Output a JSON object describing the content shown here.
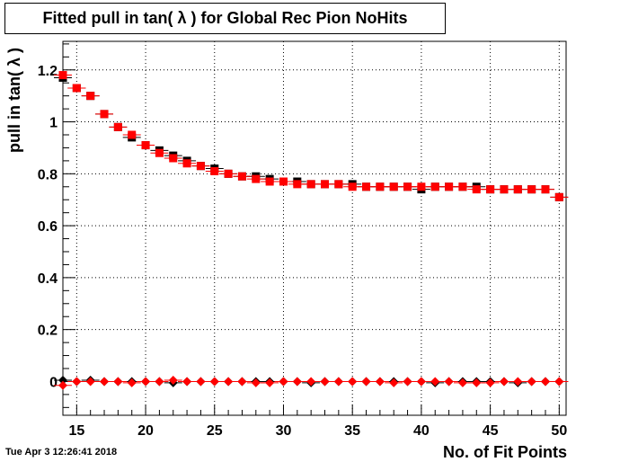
{
  "chart_data": {
    "type": "scatter",
    "title": "Fitted pull in tan( λ ) for Global Rec Pion NoHits",
    "xlabel": "No. of Fit Points",
    "ylabel": "pull in tan( λ )",
    "xlim": [
      14,
      50.5
    ],
    "ylim": [
      -0.13,
      1.31
    ],
    "xticks": [
      15,
      20,
      25,
      30,
      35,
      40,
      45,
      50
    ],
    "yticks": [
      0,
      0.2,
      0.4,
      0.6,
      0.8,
      1,
      1.2
    ],
    "ytick_labels": [
      "0",
      "0.2",
      "0.4",
      "0.6",
      "0.8",
      "1",
      "1.2"
    ],
    "grid": true,
    "x": [
      14,
      15,
      16,
      17,
      18,
      19,
      20,
      21,
      22,
      23,
      24,
      25,
      26,
      27,
      28,
      29,
      30,
      31,
      32,
      33,
      34,
      35,
      36,
      37,
      38,
      39,
      40,
      41,
      42,
      43,
      44,
      45,
      46,
      47,
      48,
      49,
      50
    ],
    "series": [
      {
        "color": "#000000",
        "marker": "square",
        "values": [
          1.17,
          1.13,
          1.1,
          1.03,
          0.98,
          0.94,
          0.91,
          0.89,
          0.87,
          0.85,
          0.83,
          0.82,
          0.8,
          0.79,
          0.79,
          0.78,
          0.77,
          0.77,
          0.76,
          0.76,
          0.76,
          0.76,
          0.75,
          0.75,
          0.75,
          0.75,
          0.74,
          0.75,
          0.75,
          0.75,
          0.75,
          0.74,
          0.74,
          0.74,
          0.74,
          0.74,
          0.71
        ]
      },
      {
        "color": "#ff0000",
        "marker": "square",
        "values": [
          1.18,
          1.13,
          1.1,
          1.03,
          0.98,
          0.95,
          0.91,
          0.88,
          0.86,
          0.84,
          0.83,
          0.81,
          0.8,
          0.79,
          0.78,
          0.77,
          0.77,
          0.76,
          0.76,
          0.76,
          0.76,
          0.75,
          0.75,
          0.75,
          0.75,
          0.75,
          0.75,
          0.75,
          0.75,
          0.75,
          0.74,
          0.74,
          0.74,
          0.74,
          0.74,
          0.74,
          0.71
        ]
      },
      {
        "color": "#000000",
        "marker": "diamond",
        "values": [
          0.005,
          0.0,
          0.005,
          0.0,
          0.0,
          0.0,
          0.0,
          0.0,
          -0.005,
          0.0,
          0.0,
          0.0,
          0.0,
          0.0,
          0.0,
          0.0,
          0.0,
          0.0,
          -0.005,
          0.0,
          0.0,
          0.0,
          0.0,
          0.0,
          0.0,
          0.0,
          0.0,
          -0.005,
          0.0,
          0.0,
          0.0,
          0.0,
          0.0,
          -0.005,
          0.0,
          0.0,
          0.0
        ]
      },
      {
        "color": "#ff0000",
        "marker": "diamond",
        "values": [
          -0.015,
          0.0,
          0.0,
          0.0,
          0.0,
          -0.005,
          0.0,
          0.0,
          0.005,
          0.0,
          0.0,
          0.0,
          0.0,
          0.0,
          -0.005,
          -0.005,
          0.0,
          0.0,
          0.0,
          0.0,
          0.0,
          0.0,
          0.0,
          0.0,
          -0.005,
          0.0,
          0.0,
          0.0,
          0.0,
          -0.005,
          -0.005,
          -0.005,
          0.0,
          0.0,
          0.0,
          0.0,
          0.0
        ]
      }
    ]
  },
  "timestamp": "Tue Apr  3 12:26:41 2018"
}
